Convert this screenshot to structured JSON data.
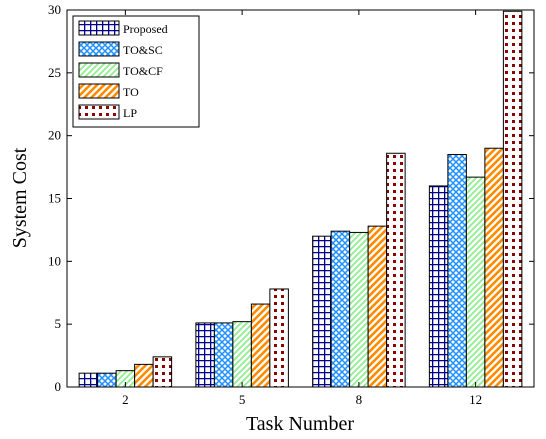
{
  "chart_data": {
    "type": "bar",
    "title": "",
    "xlabel": "Task Number",
    "ylabel": "System Cost",
    "categories": [
      "2",
      "5",
      "8",
      "12"
    ],
    "ylim": [
      0,
      30
    ],
    "yticks": [
      0,
      5,
      10,
      15,
      20,
      25,
      30
    ],
    "grid": false,
    "legend_position": "top-left",
    "series": [
      {
        "name": "Proposed",
        "values": [
          1.1,
          5.1,
          12.0,
          16.0
        ],
        "pattern": "grid",
        "color": "#00008b"
      },
      {
        "name": "TO&SC",
        "values": [
          1.1,
          5.1,
          12.4,
          18.5
        ],
        "pattern": "crosshatch",
        "color": "#1e90ff"
      },
      {
        "name": "TO&CF",
        "values": [
          1.3,
          5.2,
          12.3,
          16.7
        ],
        "pattern": "diagonal",
        "color": "#90ee90"
      },
      {
        "name": "TO",
        "values": [
          1.8,
          6.6,
          12.8,
          19.0
        ],
        "pattern": "diagonal-thick",
        "color": "#ff8c00"
      },
      {
        "name": "LP",
        "values": [
          2.4,
          7.8,
          18.6,
          29.9
        ],
        "pattern": "dots",
        "color": "#8b0000"
      }
    ]
  }
}
